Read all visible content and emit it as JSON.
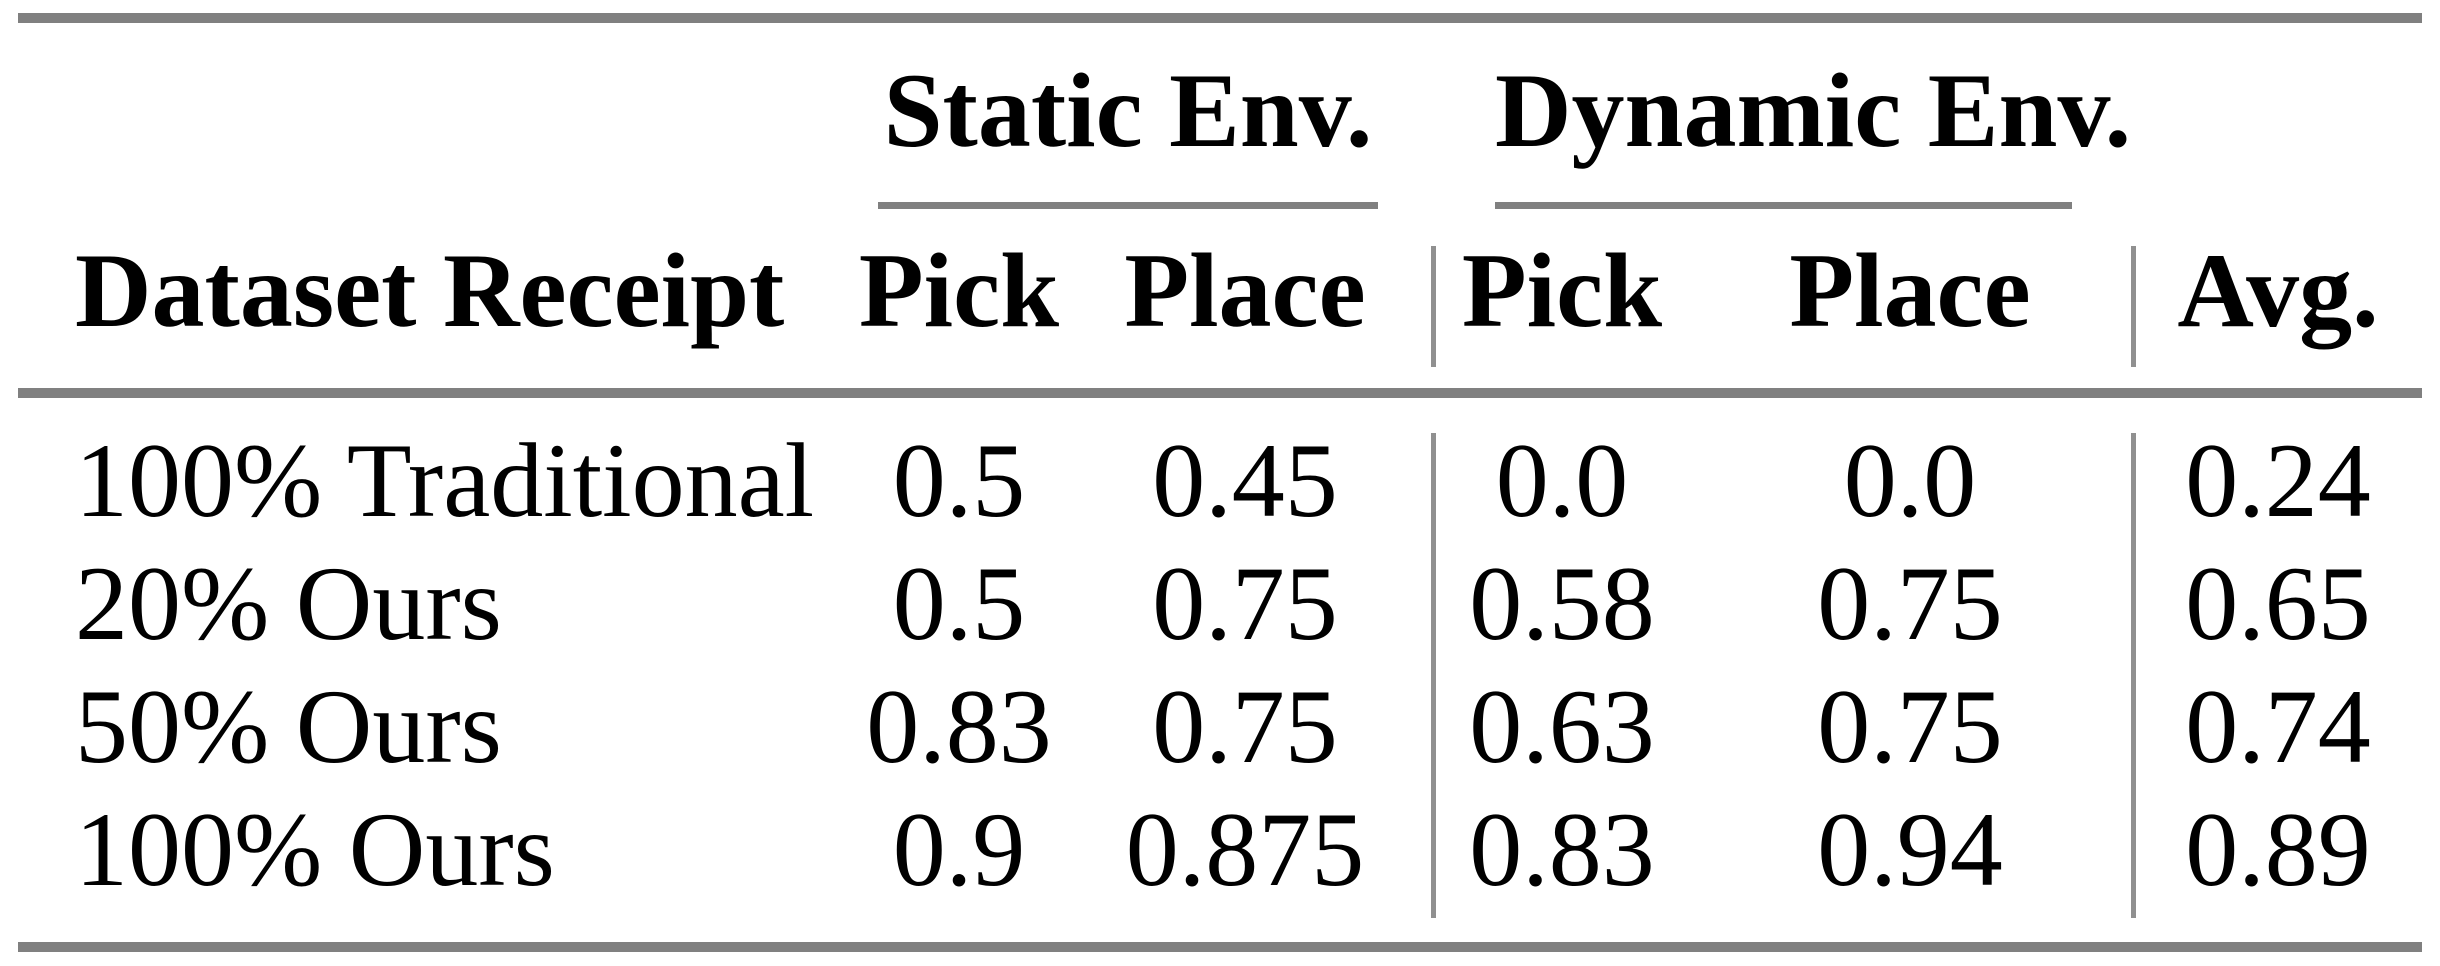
{
  "table": {
    "group_headers": {
      "static": "Static Env.",
      "dynamic": "Dynamic Env."
    },
    "columns": {
      "dataset": "Dataset Receipt",
      "static_pick": "Pick",
      "static_place": "Place",
      "dynamic_pick": "Pick",
      "dynamic_place": "Place",
      "avg": "Avg."
    },
    "rows": [
      {
        "label": "100% Traditional",
        "static_pick": "0.5",
        "static_place": "0.45",
        "dynamic_pick": "0.0",
        "dynamic_place": "0.0",
        "avg": "0.24"
      },
      {
        "label": "20% Ours",
        "static_pick": "0.5",
        "static_place": "0.75",
        "dynamic_pick": "0.58",
        "dynamic_place": "0.75",
        "avg": "0.65"
      },
      {
        "label": "50% Ours",
        "static_pick": "0.83",
        "static_place": "0.75",
        "dynamic_pick": "0.63",
        "dynamic_place": "0.75",
        "avg": "0.74"
      },
      {
        "label": "100% Ours",
        "static_pick": "0.9",
        "static_place": "0.875",
        "dynamic_pick": "0.83",
        "dynamic_place": "0.94",
        "avg": "0.89"
      }
    ],
    "colors": {
      "rule": "#808080",
      "separator": "#909090",
      "text": "#000000",
      "background": "#ffffff"
    }
  },
  "chart_data": {
    "type": "table",
    "title": "",
    "column_groups": [
      "Static Env.",
      "Dynamic Env."
    ],
    "columns": [
      "Dataset Receipt",
      "Pick",
      "Place",
      "Pick",
      "Place",
      "Avg."
    ],
    "rows": [
      [
        "100% Traditional",
        0.5,
        0.45,
        0.0,
        0.0,
        0.24
      ],
      [
        "20% Ours",
        0.5,
        0.75,
        0.58,
        0.75,
        0.65
      ],
      [
        "50% Ours",
        0.83,
        0.75,
        0.63,
        0.75,
        0.74
      ],
      [
        "100% Ours",
        0.9,
        0.875,
        0.83,
        0.94,
        0.89
      ]
    ]
  }
}
